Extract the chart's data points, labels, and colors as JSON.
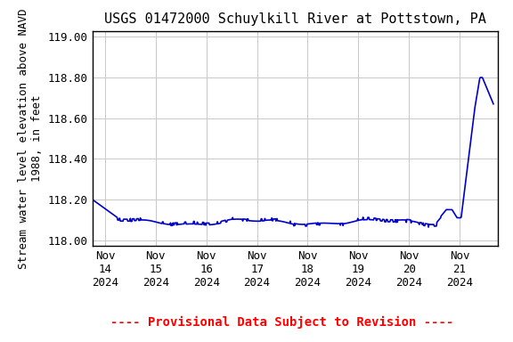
{
  "title": "USGS 01472000 Schuylkill River at Pottstown, PA",
  "ylabel_line1": "Stream water level elevation above NAVD",
  "ylabel_line2": "1988, in feet",
  "ylim": [
    117.97,
    119.03
  ],
  "yticks": [
    118.0,
    118.2,
    118.4,
    118.6,
    118.8,
    119.0
  ],
  "line_color": "#0000cc",
  "line_width": 1.2,
  "provisional_text": "---- Provisional Data Subject to Revision ----",
  "provisional_color": "#ff0000",
  "background_color": "#ffffff",
  "grid_color": "#c8c8c8",
  "font_family": "monospace",
  "title_fontsize": 11,
  "label_fontsize": 9,
  "tick_fontsize": 9,
  "prov_fontsize": 10
}
